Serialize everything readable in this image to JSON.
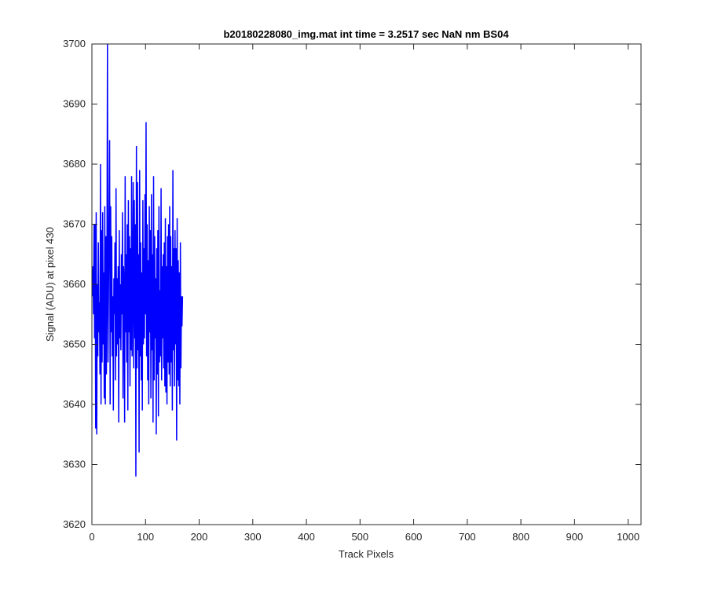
{
  "chart_data": {
    "type": "line",
    "title": "b20180228080_img.mat int time = 3.2517 sec  NaN nm BS04",
    "xlabel": "Track Pixels",
    "ylabel": "Signal (ADU) at pixel 430",
    "xlim": [
      0,
      1024
    ],
    "ylim": [
      3620,
      3700
    ],
    "xticks": [
      0,
      100,
      200,
      300,
      400,
      500,
      600,
      700,
      800,
      900,
      1000
    ],
    "yticks": [
      3620,
      3630,
      3640,
      3650,
      3660,
      3670,
      3680,
      3690,
      3700
    ],
    "grid": false,
    "legend": false,
    "line_color": "#0000ff",
    "series": [
      {
        "sample_spacing": 1,
        "x_start": 1,
        "noise_mean": 3657,
        "noise_low": 3640,
        "noise_high": 3673,
        "y": [
          3658,
          3663,
          3655,
          3670,
          3651,
          3670,
          3636,
          3672,
          3635,
          3660,
          3648,
          3667,
          3652,
          3657,
          3645,
          3680,
          3640,
          3669,
          3647,
          3672,
          3650,
          3662,
          3641,
          3673,
          3640,
          3668,
          3645,
          3660,
          3700,
          3647,
          3659,
          3672,
          3684,
          3640,
          3673,
          3652,
          3668,
          3648,
          3658,
          3639,
          3661,
          3655,
          3667,
          3644,
          3676,
          3648,
          3661,
          3650,
          3663,
          3637,
          3669,
          3651,
          3660,
          3649,
          3665,
          3655,
          3672,
          3641,
          3663,
          3660,
          3637,
          3678,
          3652,
          3665,
          3647,
          3670,
          3639,
          3674,
          3652,
          3668,
          3643,
          3666,
          3649,
          3678,
          3648,
          3659,
          3677,
          3646,
          3674,
          3651,
          3670,
          3628,
          3683,
          3646,
          3677,
          3649,
          3665,
          3632,
          3679,
          3648,
          3667,
          3644,
          3662,
          3639,
          3674,
          3650,
          3666,
          3651,
          3675,
          3655,
          3687,
          3648,
          3670,
          3644,
          3664,
          3640,
          3673,
          3652,
          3669,
          3641,
          3675,
          3649,
          3665,
          3637,
          3678,
          3644,
          3668,
          3651,
          3661,
          3635,
          3666,
          3645,
          3669,
          3638,
          3673,
          3647,
          3659,
          3648,
          3676,
          3644,
          3663,
          3651,
          3665,
          3646,
          3667,
          3643,
          3671,
          3642,
          3663,
          3640,
          3668,
          3647,
          3670,
          3645,
          3673,
          3643,
          3668,
          3647,
          3663,
          3639,
          3679,
          3649,
          3666,
          3643,
          3669,
          3650,
          3666,
          3634,
          3671,
          3644,
          3664,
          3643,
          3662,
          3640,
          3667,
          3646,
          3658,
          3653,
          3658
        ]
      }
    ]
  }
}
